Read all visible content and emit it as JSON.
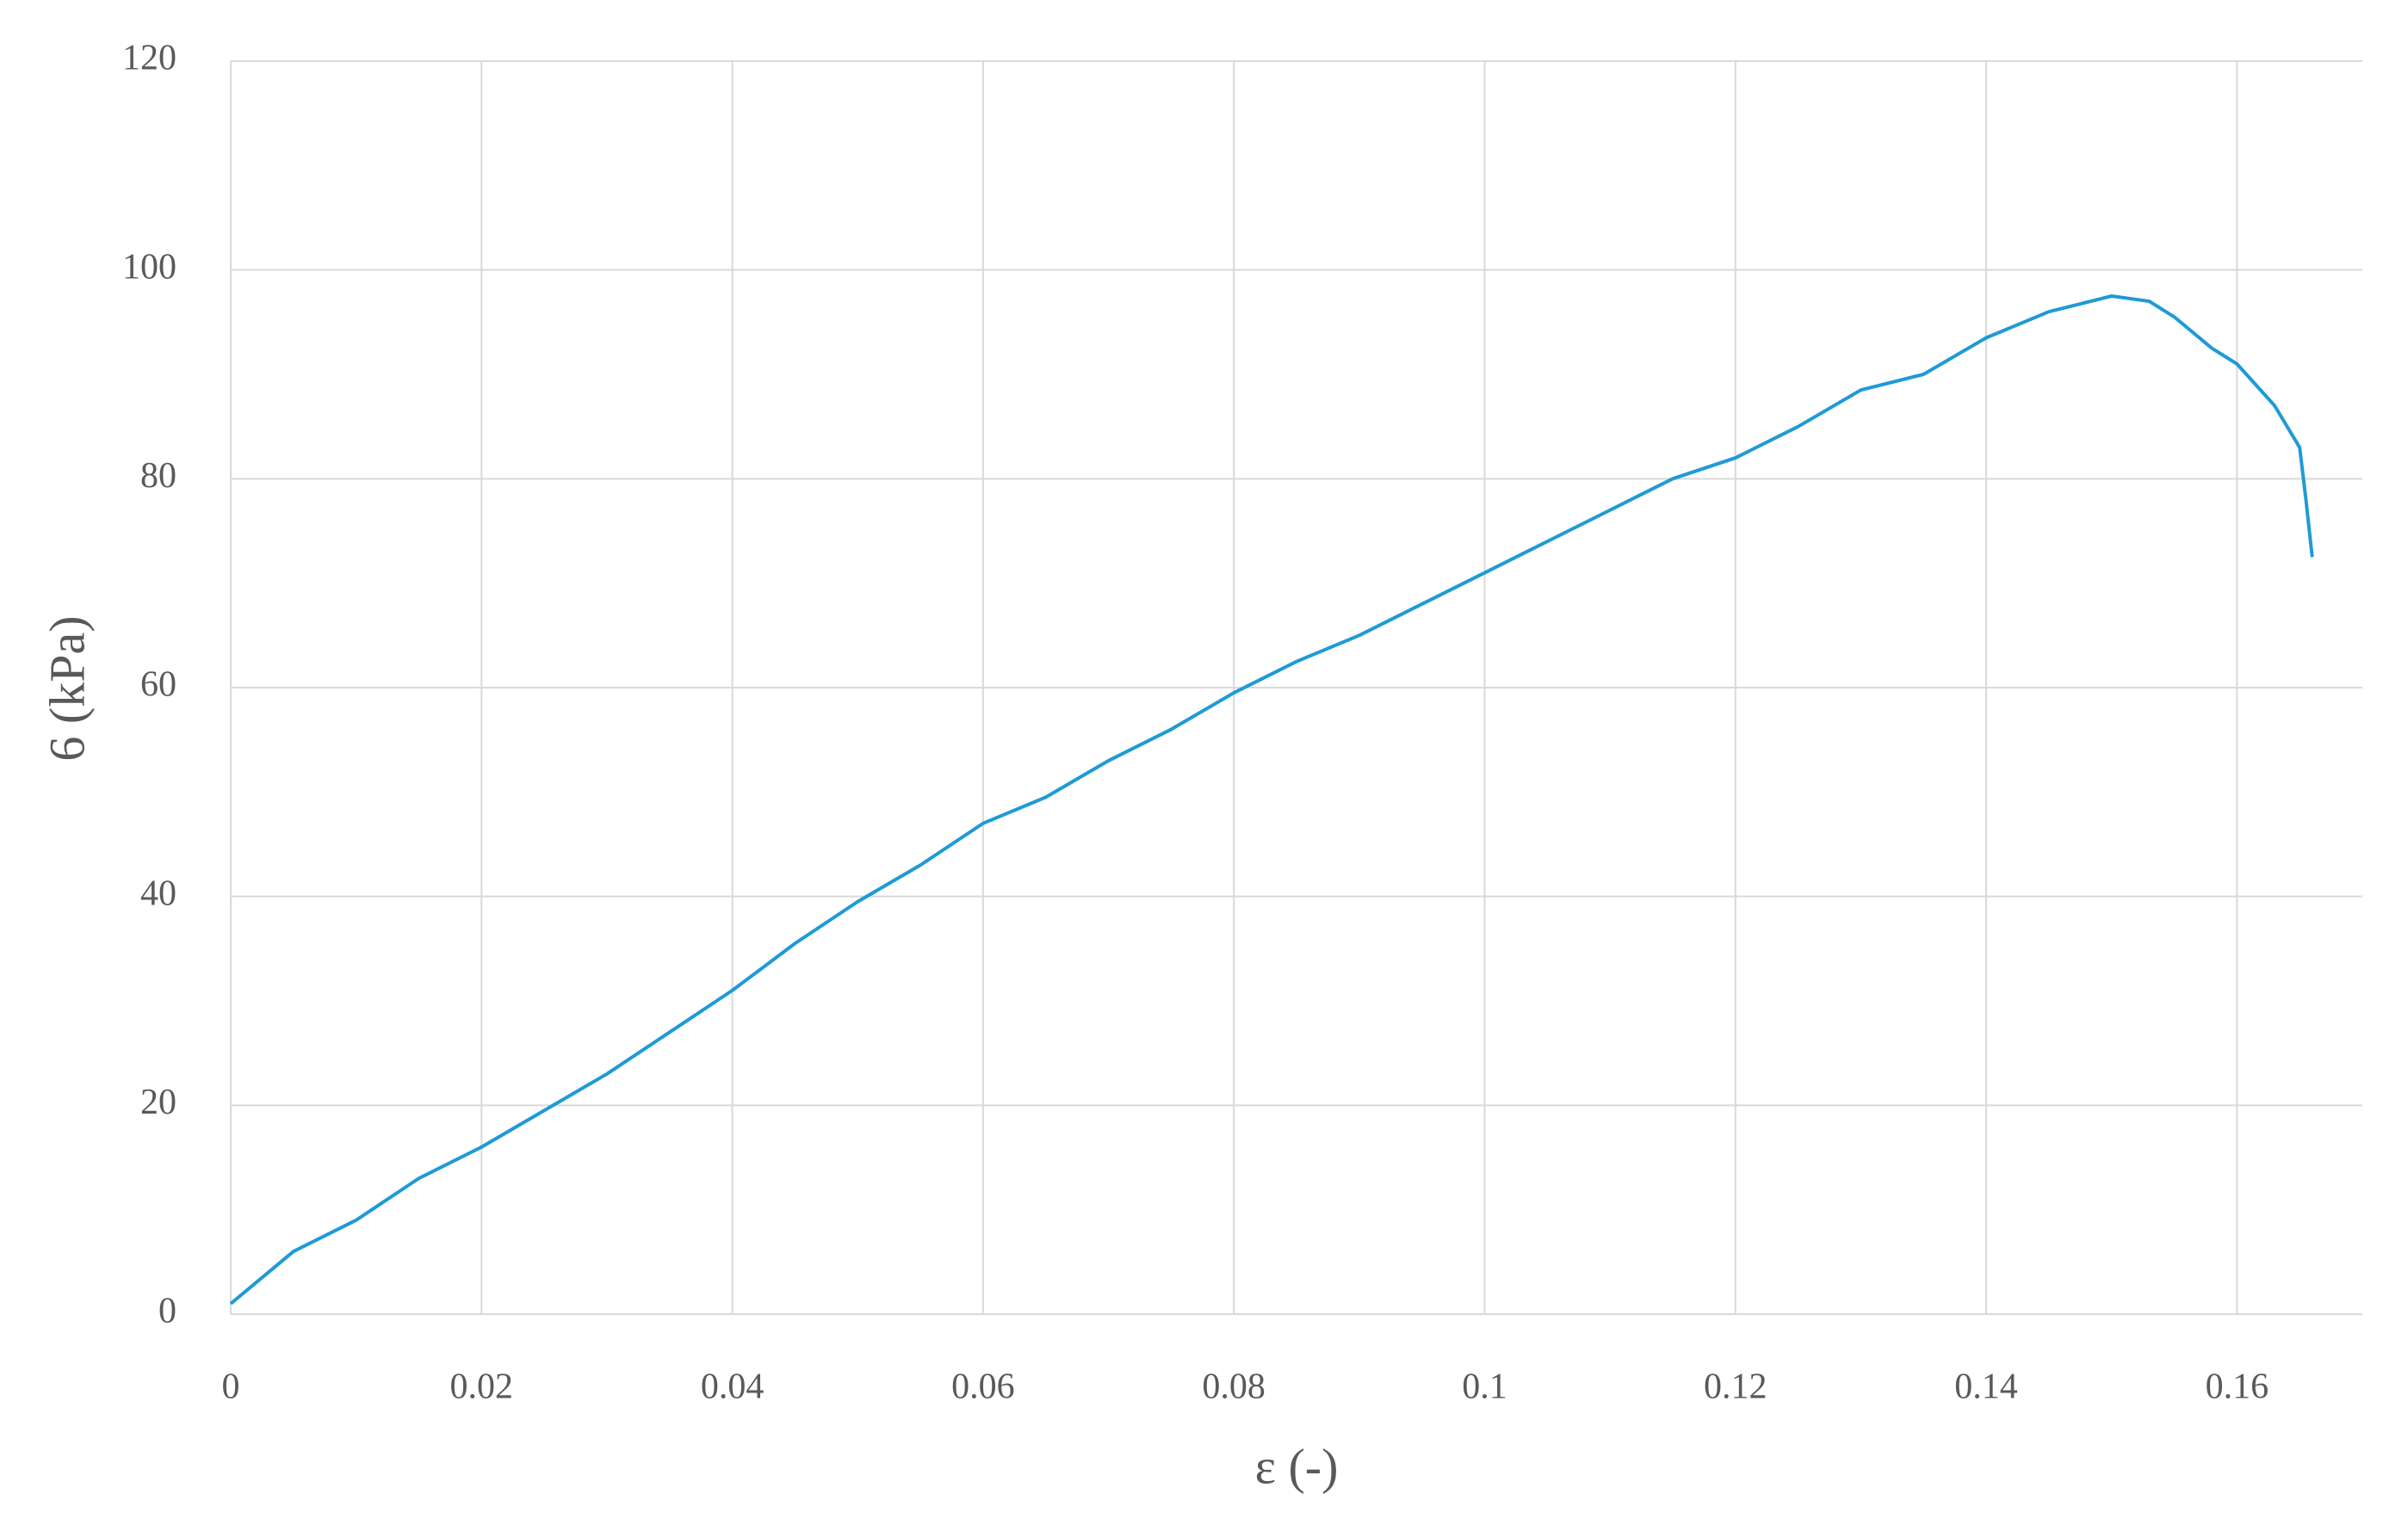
{
  "chart_data": {
    "type": "line",
    "x_label": "ε (-)",
    "y_label": "6 (kPa)",
    "x": [
      0,
      0.005,
      0.01,
      0.015,
      0.02,
      0.025,
      0.03,
      0.035,
      0.04,
      0.045,
      0.05,
      0.055,
      0.06,
      0.065,
      0.07,
      0.075,
      0.08,
      0.085,
      0.09,
      0.095,
      0.1,
      0.105,
      0.11,
      0.115,
      0.12,
      0.125,
      0.13,
      0.135,
      0.14,
      0.145,
      0.15,
      0.153,
      0.155,
      0.158,
      0.16,
      0.163,
      0.165,
      0.1655,
      0.166
    ],
    "series": [
      {
        "color": "#1f9ad6",
        "values": [
          1,
          6,
          9,
          13,
          16,
          19.5,
          23,
          27,
          31,
          35.5,
          39.5,
          43,
          47,
          49.5,
          53,
          56,
          59.5,
          62.5,
          65,
          68,
          71,
          74,
          77,
          80,
          82,
          85,
          88.5,
          90,
          93.5,
          96,
          97.5,
          97,
          95.5,
          92.5,
          91,
          87,
          83,
          78,
          72.5
        ]
      }
    ],
    "xlim": [
      0,
      0.17
    ],
    "xticks": [
      0,
      0.02,
      0.04,
      0.06,
      0.08,
      0.1,
      0.12,
      0.14,
      0.16
    ],
    "ylim": [
      0,
      120
    ],
    "yticks": [
      0,
      20,
      40,
      60,
      80,
      100,
      120
    ],
    "grid": true
  }
}
